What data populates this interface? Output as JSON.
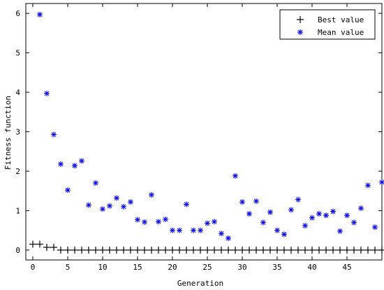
{
  "chart_data": {
    "type": "scatter",
    "title": "",
    "xlabel": "Generation",
    "ylabel": "Fitness function",
    "xlim": [
      -1,
      50
    ],
    "ylim": [
      -0.25,
      6.25
    ],
    "xticks": [
      0,
      5,
      10,
      15,
      20,
      25,
      30,
      35,
      40,
      45
    ],
    "yticks": [
      0,
      1,
      2,
      3,
      4,
      5,
      6
    ],
    "grid": false,
    "legend_position": "top-right",
    "series": [
      {
        "name": "Best value",
        "marker": "plus",
        "color": "#000000",
        "x": [
          0,
          1,
          2,
          3,
          4,
          5,
          6,
          7,
          8,
          9,
          10,
          11,
          12,
          13,
          14,
          15,
          16,
          17,
          18,
          19,
          20,
          21,
          22,
          23,
          24,
          25,
          26,
          27,
          28,
          29,
          30,
          31,
          32,
          33,
          34,
          35,
          36,
          37,
          38,
          39,
          40,
          41,
          42,
          43,
          44,
          45,
          46,
          47,
          48,
          49,
          50
        ],
        "y": [
          0.15,
          0.15,
          0.07,
          0.07,
          0,
          0,
          0,
          0,
          0,
          0,
          0,
          0,
          0,
          0,
          0,
          0,
          0,
          0,
          0,
          0,
          0,
          0,
          0,
          0,
          0,
          0,
          0,
          0,
          0,
          0,
          0,
          0,
          0,
          0,
          0,
          0,
          0,
          0,
          0,
          0,
          0,
          0,
          0,
          0,
          0,
          0,
          0,
          0,
          0,
          0,
          0
        ]
      },
      {
        "name": "Mean value",
        "marker": "star",
        "color": "#0000ff",
        "x": [
          1,
          2,
          3,
          4,
          5,
          6,
          7,
          8,
          9,
          10,
          11,
          12,
          13,
          14,
          15,
          16,
          17,
          18,
          19,
          20,
          21,
          22,
          23,
          24,
          25,
          26,
          27,
          28,
          29,
          30,
          31,
          32,
          33,
          34,
          35,
          36,
          37,
          38,
          39,
          40,
          41,
          42,
          43,
          44,
          45,
          46,
          47,
          48,
          49,
          50
        ],
        "y": [
          5.97,
          3.97,
          2.93,
          2.18,
          1.52,
          2.14,
          2.26,
          1.14,
          1.7,
          1.04,
          1.12,
          1.32,
          1.1,
          1.22,
          0.77,
          0.71,
          1.4,
          0.72,
          0.78,
          0.5,
          0.5,
          1.16,
          0.5,
          0.5,
          0.68,
          0.72,
          0.42,
          0.3,
          1.88,
          1.22,
          0.92,
          1.24,
          0.7,
          0.96,
          0.5,
          0.4,
          1.02,
          1.28,
          0.62,
          0.82,
          0.92,
          0.88,
          0.98,
          0.48,
          0.88,
          0.7,
          1.06,
          1.64,
          0.58,
          1.72
        ]
      }
    ]
  }
}
